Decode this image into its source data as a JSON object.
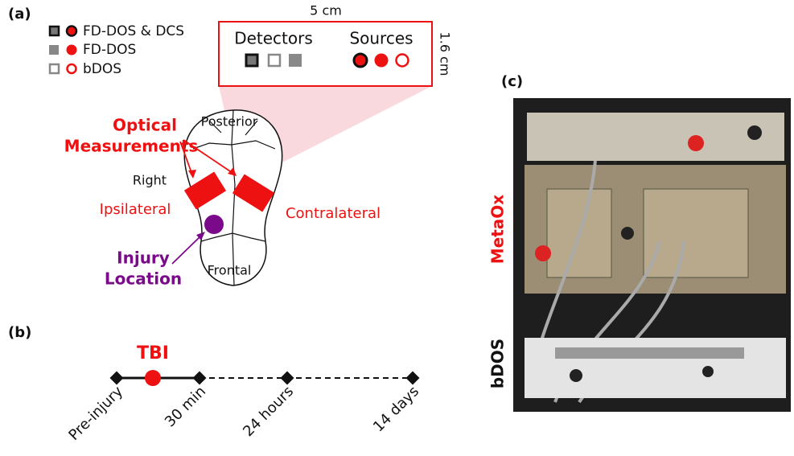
{
  "panel_a": {
    "label": "(a)",
    "legend": [
      "FD-DOS & DCS",
      "FD-DOS",
      "bDOS"
    ],
    "probe": {
      "width": "5 cm",
      "height": "1.6 cm",
      "detectors": "Detectors",
      "sources": "Sources"
    },
    "annotations": {
      "optical": [
        "Optical",
        "Measurements"
      ],
      "posterior": "Posterior",
      "right": "Right",
      "ipsilateral": "Ipsilateral",
      "contralateral": "Contralateral",
      "injury": [
        "Injury",
        "Location"
      ],
      "frontal": "Frontal"
    }
  },
  "panel_b": {
    "label": "(b)",
    "event": "TBI",
    "timepoints": [
      "Pre-injury",
      "30 min",
      "24 hours",
      "14 days"
    ]
  },
  "panel_c": {
    "label": "(c)",
    "devices": [
      "MetaOx",
      "bDOS"
    ]
  }
}
